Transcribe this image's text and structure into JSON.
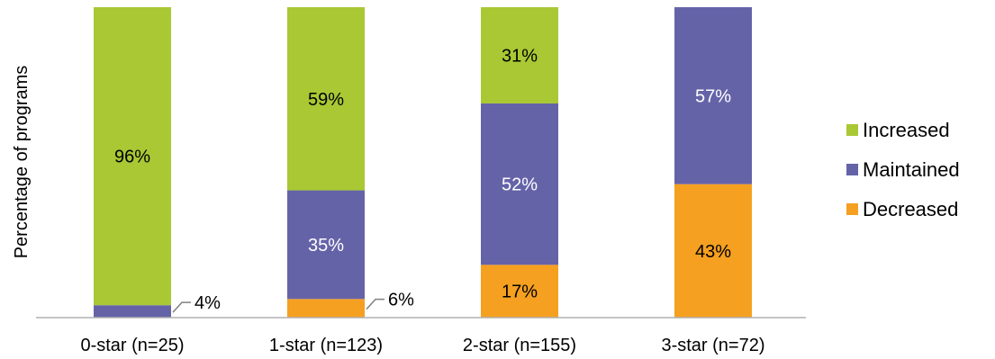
{
  "chart_data": {
    "type": "bar",
    "stacked": true,
    "percent": true,
    "title": "",
    "xlabel": "",
    "ylabel": "Percentage of programs",
    "ylim": [
      0,
      100
    ],
    "grid": false,
    "legend_position": "right",
    "categories": [
      "0-star (n=25)",
      "1-star (n=123)",
      "2-star (n=155)",
      "3-star (n=72)"
    ],
    "series": [
      {
        "name": "Decreased",
        "color": "#f5a020",
        "values": [
          0,
          6,
          17,
          43
        ],
        "labels": [
          "",
          "6%",
          "17%",
          "43%"
        ]
      },
      {
        "name": "Maintained",
        "color": "#6563a8",
        "values": [
          4,
          35,
          52,
          57
        ],
        "labels": [
          "4%",
          "35%",
          "52%",
          "57%"
        ]
      },
      {
        "name": "Increased",
        "color": "#a9c834",
        "values": [
          96,
          59,
          31,
          0
        ],
        "labels": [
          "96%",
          "59%",
          "31%",
          ""
        ]
      }
    ],
    "outside_labels": [
      {
        "category": 0,
        "series": 1
      },
      {
        "category": 1,
        "series": 0
      }
    ],
    "legend_order": [
      "Increased",
      "Maintained",
      "Decreased"
    ]
  }
}
